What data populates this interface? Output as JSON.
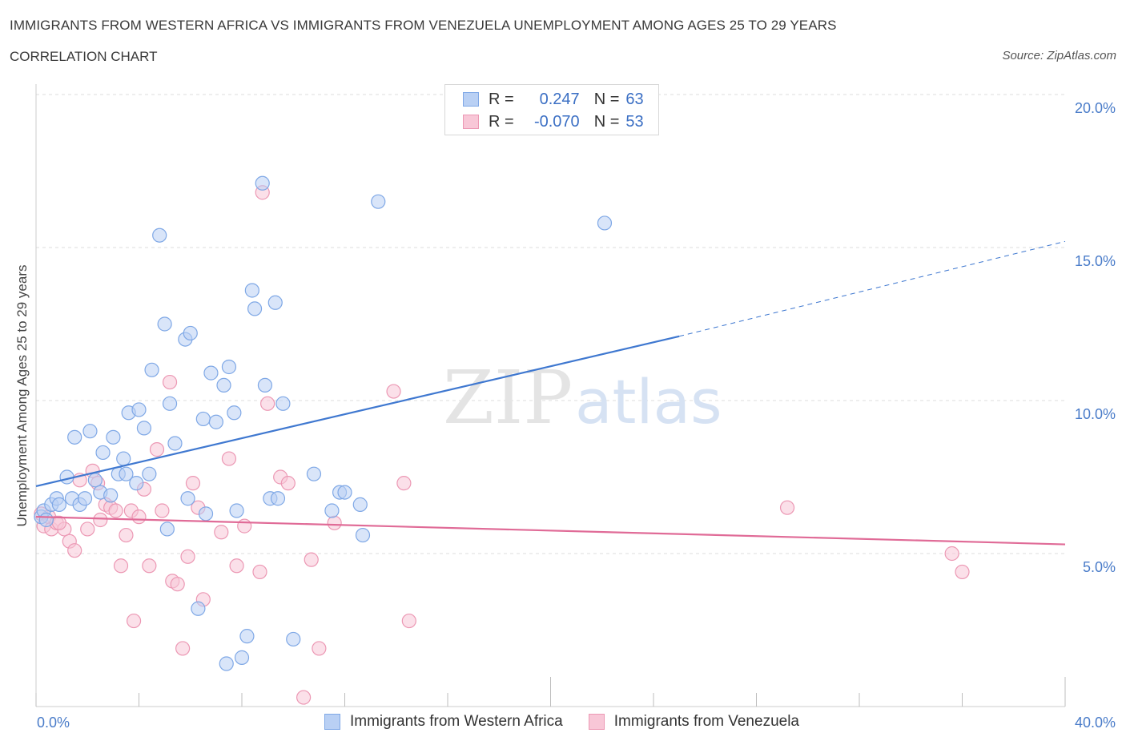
{
  "title": "IMMIGRANTS FROM WESTERN AFRICA VS IMMIGRANTS FROM VENEZUELA UNEMPLOYMENT AMONG AGES 25 TO 29 YEARS",
  "subtitle": "CORRELATION CHART",
  "source": "Source: ZipAtlas.com",
  "watermark": "ZIPatlas",
  "colors": {
    "blue": "#7fa8e6",
    "blue_fill": "#b9d0f4",
    "blue_line": "#3f78d0",
    "pink": "#ec98b4",
    "pink_fill": "#f8c7d7",
    "pink_line": "#e06b97",
    "axis_text": "#4a7cc9",
    "grid": "#dddddd"
  },
  "legend": {
    "rows": [
      {
        "r_label": "R =",
        "r_value": "0.247",
        "n_label": "N =",
        "n_value": "63"
      },
      {
        "r_label": "R =",
        "r_value": "-0.070",
        "n_label": "N =",
        "n_value": "53"
      }
    ]
  },
  "bottom_legend": [
    "Immigrants from Western Africa",
    "Immigrants from Venezuela"
  ],
  "chart_data": {
    "type": "scatter",
    "ylabel": "Unemployment Among Ages 25 to 29 years",
    "xlim": [
      0,
      40
    ],
    "ylim": [
      0,
      20
    ],
    "x_tick_labels": [
      "0.0%",
      "40.0%"
    ],
    "y_ticks": [
      5,
      10,
      15,
      20
    ],
    "y_tick_labels": [
      "5.0%",
      "10.0%",
      "15.0%",
      "20.0%"
    ],
    "grid": true,
    "series": [
      {
        "name": "Immigrants from Western Africa",
        "trend": {
          "x0": 0,
          "y0": 7.2,
          "x1": 25,
          "y1": 12.1,
          "dashed_to_x": 40,
          "dashed_to_y": 15.2
        },
        "points": [
          [
            0.2,
            6.2
          ],
          [
            0.3,
            6.4
          ],
          [
            0.4,
            6.1
          ],
          [
            0.6,
            6.6
          ],
          [
            0.8,
            6.8
          ],
          [
            0.9,
            6.6
          ],
          [
            1.2,
            7.5
          ],
          [
            1.4,
            6.8
          ],
          [
            1.5,
            8.8
          ],
          [
            1.7,
            6.6
          ],
          [
            1.9,
            6.8
          ],
          [
            2.1,
            9.0
          ],
          [
            2.3,
            7.4
          ],
          [
            2.5,
            7.0
          ],
          [
            2.6,
            8.3
          ],
          [
            2.9,
            6.9
          ],
          [
            3.0,
            8.8
          ],
          [
            3.2,
            7.6
          ],
          [
            3.4,
            8.1
          ],
          [
            3.5,
            7.6
          ],
          [
            3.6,
            9.6
          ],
          [
            3.9,
            7.3
          ],
          [
            4.0,
            9.7
          ],
          [
            4.2,
            9.1
          ],
          [
            4.4,
            7.6
          ],
          [
            4.5,
            11.0
          ],
          [
            4.8,
            15.4
          ],
          [
            5.0,
            12.5
          ],
          [
            5.1,
            5.8
          ],
          [
            5.2,
            9.9
          ],
          [
            5.4,
            8.6
          ],
          [
            5.8,
            12.0
          ],
          [
            5.9,
            6.8
          ],
          [
            6.0,
            12.2
          ],
          [
            6.3,
            3.2
          ],
          [
            6.5,
            9.4
          ],
          [
            6.6,
            6.3
          ],
          [
            6.8,
            10.9
          ],
          [
            7.0,
            9.3
          ],
          [
            7.3,
            10.5
          ],
          [
            7.4,
            1.4
          ],
          [
            7.5,
            11.1
          ],
          [
            7.7,
            9.6
          ],
          [
            7.8,
            6.4
          ],
          [
            8.0,
            1.6
          ],
          [
            8.2,
            2.3
          ],
          [
            8.4,
            13.6
          ],
          [
            8.5,
            13.0
          ],
          [
            8.8,
            17.1
          ],
          [
            8.9,
            10.5
          ],
          [
            9.1,
            6.8
          ],
          [
            9.3,
            13.2
          ],
          [
            9.4,
            6.8
          ],
          [
            9.6,
            9.9
          ],
          [
            10.0,
            2.2
          ],
          [
            10.8,
            7.6
          ],
          [
            11.5,
            6.4
          ],
          [
            11.8,
            7.0
          ],
          [
            12.0,
            7.0
          ],
          [
            12.6,
            6.6
          ],
          [
            12.7,
            5.6
          ],
          [
            13.3,
            16.5
          ],
          [
            22.1,
            15.8
          ]
        ]
      },
      {
        "name": "Immigrants from Venezuela",
        "trend": {
          "x0": 0,
          "y0": 6.2,
          "x1": 40,
          "y1": 5.3
        },
        "points": [
          [
            0.2,
            6.3
          ],
          [
            0.3,
            5.9
          ],
          [
            0.5,
            6.2
          ],
          [
            0.6,
            5.8
          ],
          [
            0.8,
            6.0
          ],
          [
            1.1,
            5.8
          ],
          [
            1.3,
            5.4
          ],
          [
            1.5,
            5.1
          ],
          [
            1.7,
            7.4
          ],
          [
            2.0,
            5.8
          ],
          [
            2.2,
            7.7
          ],
          [
            2.4,
            7.3
          ],
          [
            2.5,
            6.1
          ],
          [
            2.7,
            6.6
          ],
          [
            2.9,
            6.5
          ],
          [
            3.1,
            6.4
          ],
          [
            3.3,
            4.6
          ],
          [
            3.5,
            5.6
          ],
          [
            3.7,
            6.4
          ],
          [
            3.8,
            2.8
          ],
          [
            4.0,
            6.2
          ],
          [
            4.2,
            7.1
          ],
          [
            4.4,
            4.6
          ],
          [
            4.7,
            8.4
          ],
          [
            4.9,
            6.4
          ],
          [
            5.2,
            10.6
          ],
          [
            5.3,
            4.1
          ],
          [
            5.5,
            4.0
          ],
          [
            5.7,
            1.9
          ],
          [
            5.9,
            4.9
          ],
          [
            6.1,
            7.3
          ],
          [
            6.3,
            6.5
          ],
          [
            6.5,
            3.5
          ],
          [
            7.2,
            5.7
          ],
          [
            7.5,
            8.1
          ],
          [
            7.8,
            4.6
          ],
          [
            8.1,
            5.9
          ],
          [
            8.7,
            4.4
          ],
          [
            8.8,
            16.8
          ],
          [
            9.0,
            9.9
          ],
          [
            9.5,
            7.5
          ],
          [
            9.8,
            7.3
          ],
          [
            10.4,
            0.3
          ],
          [
            10.7,
            4.8
          ],
          [
            11.0,
            1.9
          ],
          [
            11.6,
            6.0
          ],
          [
            13.9,
            10.3
          ],
          [
            14.3,
            7.3
          ],
          [
            14.5,
            2.8
          ],
          [
            29.2,
            6.5
          ],
          [
            35.6,
            5.0
          ],
          [
            36.0,
            4.4
          ],
          [
            0.9,
            6.0
          ]
        ]
      }
    ]
  }
}
